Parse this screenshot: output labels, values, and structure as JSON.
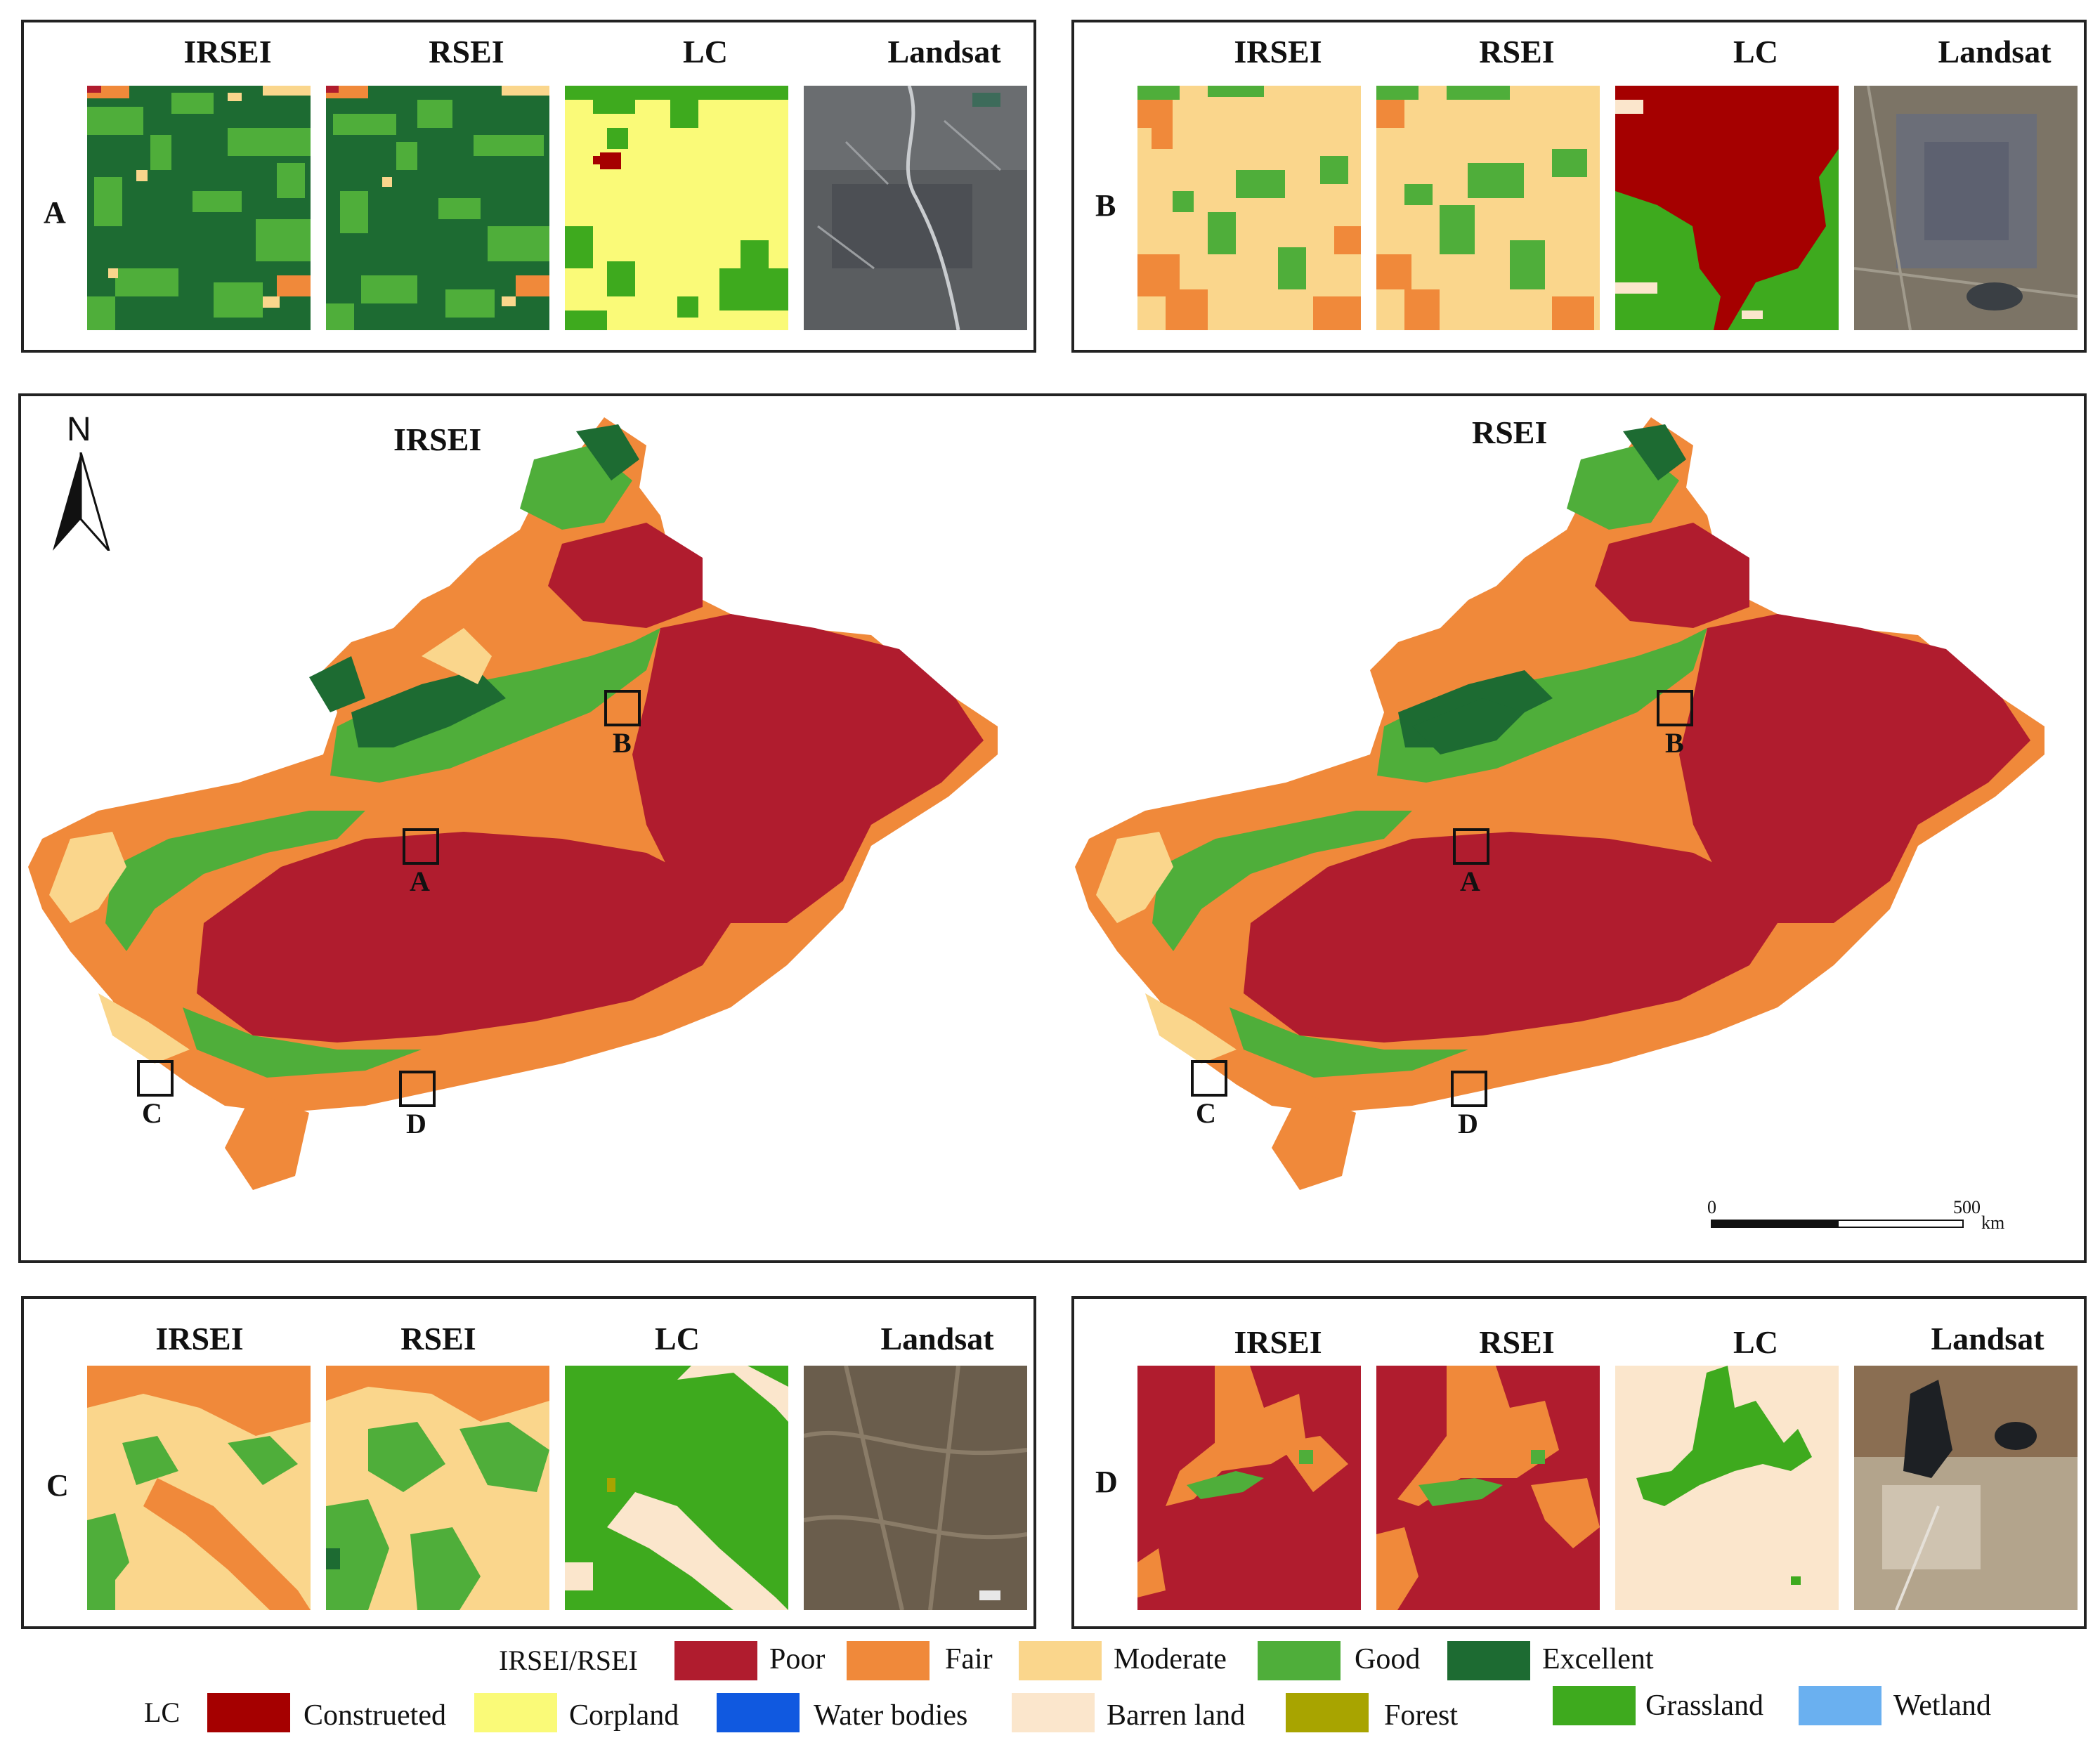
{
  "panels": [
    {
      "id": "A",
      "label": "A",
      "titles": [
        "IRSEI",
        "RSEI",
        "LC",
        "Landsat"
      ]
    },
    {
      "id": "B",
      "label": "B",
      "titles": [
        "IRSEI",
        "RSEI",
        "LC",
        "Landsat"
      ]
    },
    {
      "id": "C",
      "label": "C",
      "titles": [
        "IRSEI",
        "RSEI",
        "LC",
        "Landsat"
      ]
    },
    {
      "id": "D",
      "label": "D",
      "titles": [
        "IRSEI",
        "RSEI",
        "LC",
        "Landsat"
      ]
    }
  ],
  "maps": {
    "north": "N",
    "left_title": "IRSEI",
    "right_title": "RSEI",
    "markers": [
      "A",
      "B",
      "C",
      "D"
    ],
    "scale": {
      "start": "0",
      "end": "500",
      "unit": "km"
    }
  },
  "legend": {
    "index_head": "IRSEI/RSEI",
    "index_classes": [
      {
        "label": "Poor",
        "color": "#b01c2e"
      },
      {
        "label": "Fair",
        "color": "#f0893a"
      },
      {
        "label": "Moderate",
        "color": "#fad68c"
      },
      {
        "label": "Good",
        "color": "#4fae3a"
      },
      {
        "label": "Excellent",
        "color": "#1d6b32"
      }
    ],
    "lc_head": "LC",
    "lc_classes": [
      {
        "label": "Construeted",
        "color": "#a50000"
      },
      {
        "label": "Corpland",
        "color": "#fafa78"
      },
      {
        "label": "Water bodies",
        "color": "#1059e0"
      },
      {
        "label": "Barren land",
        "color": "#fbe6cc"
      },
      {
        "label": "Forest",
        "color": "#a8a400"
      },
      {
        "label": "Grassland",
        "color": "#3eaa1e"
      },
      {
        "label": "Wetland",
        "color": "#6ab0f0"
      }
    ]
  }
}
